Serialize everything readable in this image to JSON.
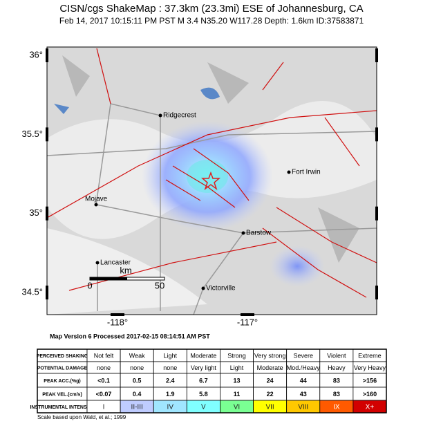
{
  "header": {
    "title": "CISN/cgs ShakeMap : 37.3km (23.3mi) ESE of Johannesburg, CA",
    "subtitle": "Feb 14, 2017 10:15:11 PM PST   M 3.4   N35.20 W117.28   Depth: 1.6km   ID:37583871"
  },
  "map": {
    "lat_ticks": [
      {
        "value": 36,
        "label": "36°"
      },
      {
        "value": 35.5,
        "label": "35.5°"
      },
      {
        "value": 35,
        "label": "35°"
      },
      {
        "value": 34.5,
        "label": "34.5°"
      }
    ],
    "lon_ticks": [
      {
        "value": -118,
        "label": "-118°"
      },
      {
        "value": -117,
        "label": "-117°"
      }
    ],
    "cities": [
      "Ridgecrest",
      "Fort Irwin",
      "Mojave",
      "Barstow",
      "Lancaster",
      "Victorville"
    ],
    "scale_bar": {
      "start": "0",
      "end": "50",
      "unit": "km"
    },
    "version": "Map Version 6 Processed 2017-02-15 08:14:51 AM PST"
  },
  "table": {
    "rows": [
      [
        "PERCEIVED SHAKING",
        "Not felt",
        "Weak",
        "Light",
        "Moderate",
        "Strong",
        "Very strong",
        "Severe",
        "Violent",
        "Extreme"
      ],
      [
        "POTENTIAL DAMAGE",
        "none",
        "none",
        "none",
        "Very light",
        "Light",
        "Moderate",
        "Mod./Heavy",
        "Heavy",
        "Very Heavy"
      ],
      [
        "PEAK ACC.(%g)",
        "<0.1",
        "0.5",
        "2.4",
        "6.7",
        "13",
        "24",
        "44",
        "83",
        ">156"
      ],
      [
        "PEAK VEL.(cm/s)",
        "<0.07",
        "0.4",
        "1.9",
        "5.8",
        "11",
        "22",
        "43",
        "83",
        ">160"
      ],
      [
        "INSTRUMENTAL INTENSITY",
        "I",
        "II-III",
        "IV",
        "V",
        "VI",
        "VII",
        "VIII",
        "IX",
        "X+"
      ]
    ],
    "intensity_colors": [
      "#ffffff",
      "#bfccff",
      "#a0e6ff",
      "#80ffff",
      "#7aff93",
      "#ffff00",
      "#ffc800",
      "#ff5a00",
      "#d20000"
    ],
    "footnote": "Scale based upon Wald, et al.; 1999"
  }
}
